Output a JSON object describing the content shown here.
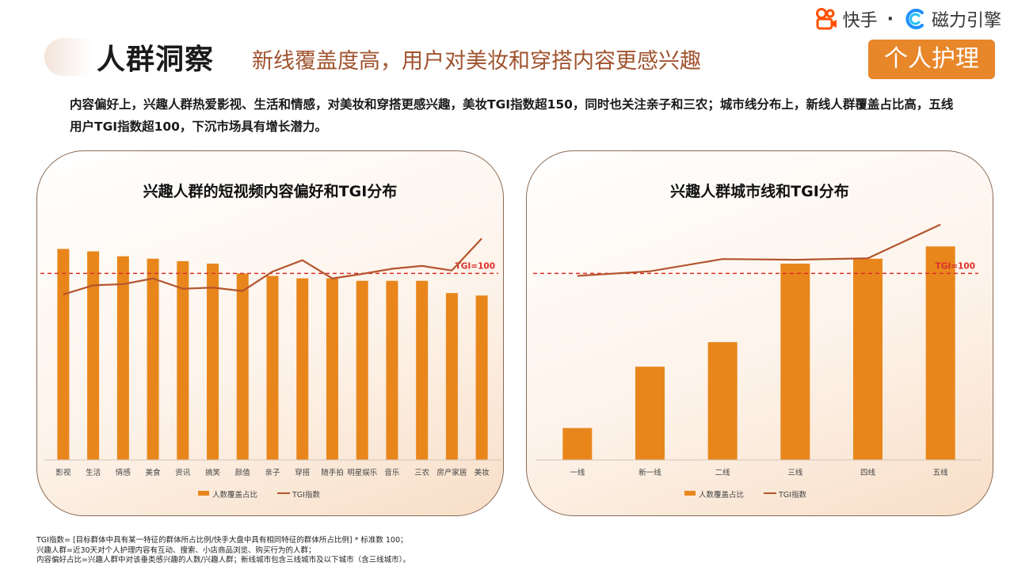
{
  "header": {
    "title": "人群洞察",
    "subtitle": "新线覆盖度高，用户对美妆和穿搭内容更感兴趣",
    "badge": "个人护理",
    "logo_kuaishou": "快手",
    "logo_separator": "·",
    "logo_engine": "磁力引擎"
  },
  "intro": "内容偏好上，兴趣人群热爱影视、生活和情感，对美妆和穿搭更感兴趣，美妆TGI指数超150，同时也关注亲子和三农；城市线分布上，新线人群覆盖占比高，五线用户TGI指数超100，下沉市场具有增长潜力。",
  "colors": {
    "bar": "#e8861c",
    "line": "#b4552d",
    "reference": "#d9302a",
    "badge": "#e8862a"
  },
  "chart_data": [
    {
      "type": "bar",
      "title": "兴趣人群的短视频内容偏好和TGI分布",
      "categories": [
        "影视",
        "生活",
        "情感",
        "美食",
        "资讯",
        "搞笑",
        "颜值",
        "亲子",
        "穿搭",
        "随手拍",
        "明星娱乐",
        "音乐",
        "三农",
        "房产家居",
        "美妆"
      ],
      "series": [
        {
          "name": "人数覆盖占比",
          "kind": "bar",
          "values": [
            86,
            85,
            83,
            82,
            81,
            80,
            76,
            75,
            74,
            74,
            73,
            73,
            73,
            68,
            67
          ]
        },
        {
          "name": "TGI指数",
          "kind": "line",
          "values": [
            90,
            106,
            108,
            118,
            100,
            102,
            96,
            130,
            150,
            118,
            126,
            135,
            140,
            132,
            188
          ]
        }
      ],
      "reference_line": {
        "label": "TGI=100",
        "value": 76
      },
      "ylim_bar": [
        0,
        100
      ],
      "ylim_tgi": [
        -200,
        230
      ],
      "legend_position": "bottom",
      "grid": false
    },
    {
      "type": "bar",
      "title": "兴趣人群城市线和TGI分布",
      "categories": [
        "一线",
        "新一线",
        "二线",
        "三线",
        "四线",
        "五线"
      ],
      "series": [
        {
          "name": "人数覆盖占比",
          "kind": "bar",
          "values": [
            13,
            38,
            48,
            80,
            82,
            87
          ]
        },
        {
          "name": "TGI指数",
          "kind": "line",
          "values": [
            60,
            66,
            82,
            81,
            83,
            127
          ]
        }
      ],
      "reference_line": {
        "label": "TGI=100",
        "value": 76
      },
      "ylim_bar": [
        0,
        100
      ],
      "ylim_tgi": [
        -180,
        140
      ],
      "legend_position": "bottom",
      "grid": false
    }
  ],
  "footnotes": [
    "TGI指数= [目标群体中具有某一特征的群体所占比例/快手大盘中具有相同特征的群体所占比例] * 标准数 100；",
    "兴趣人群=近30天对个人护理内容有互动、搜索、小店商品浏览、购买行为的人群；",
    "内容偏好占比=兴趣人群中对该垂类感兴趣的人数/兴趣人群；新线城市包含三线城市及以下城市（含三线城市）。"
  ]
}
